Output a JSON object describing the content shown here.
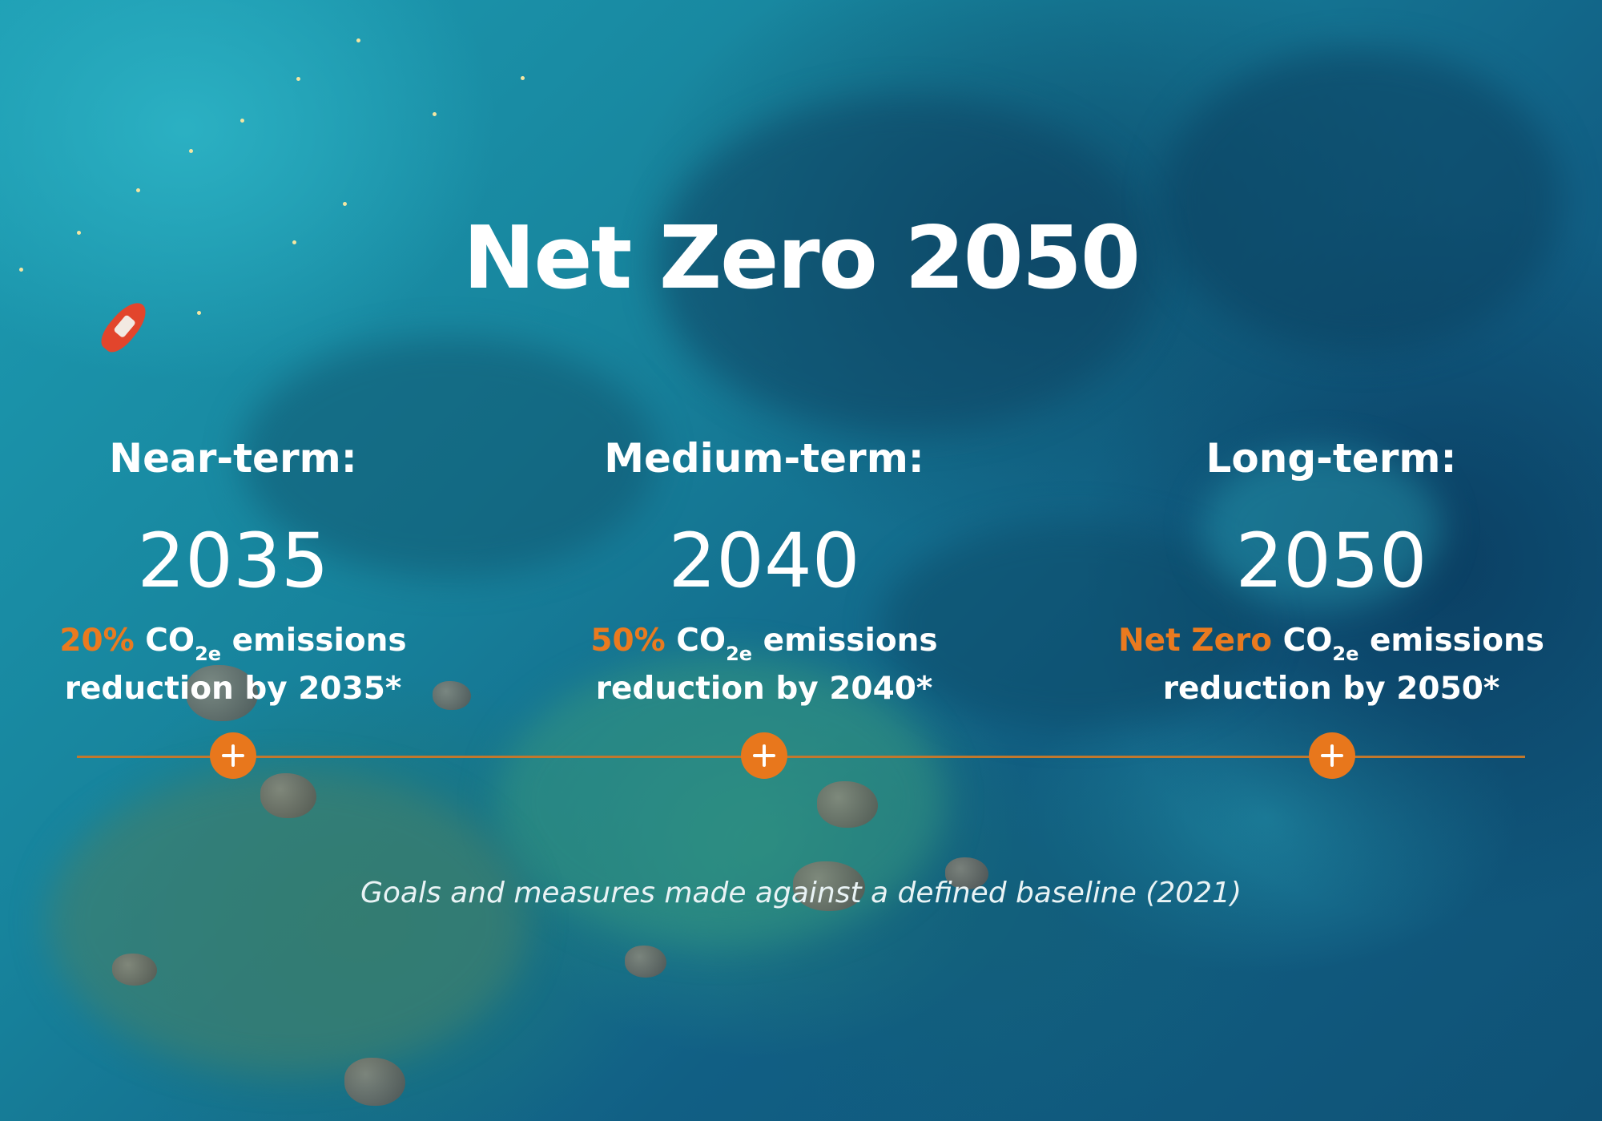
{
  "title": "Net Zero 2050",
  "colors": {
    "accent_orange": "#e8771c",
    "text": "#ffffff",
    "timeline_line": "#c1782d"
  },
  "milestones": [
    {
      "term": "Near-term:",
      "year": "2035",
      "highlight": "20%",
      "co2": "CO",
      "co2_subscript": "2e",
      "emissions_word": "emissions",
      "reduction_text": "reduction by 2035*",
      "marker_icon": "plus-icon"
    },
    {
      "term": "Medium-term:",
      "year": "2040",
      "highlight": "50%",
      "co2": "CO",
      "co2_subscript": "2e",
      "emissions_word": "emissions",
      "reduction_text": "reduction by 2040*",
      "marker_icon": "plus-icon"
    },
    {
      "term": "Long-term:",
      "year": "2050",
      "highlight": "Net Zero",
      "co2": "CO",
      "co2_subscript": "2e",
      "emissions_word": "emissions",
      "reduction_text": "reduction by 2050*",
      "marker_icon": "plus-icon"
    }
  ],
  "footnote": "Goals and measures made against a defined baseline (2021)"
}
